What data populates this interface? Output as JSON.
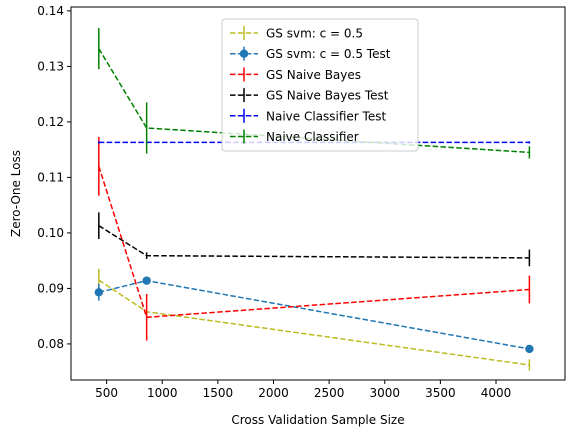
{
  "chart_data": {
    "type": "line",
    "xlabel": "Cross Validation Sample Size",
    "ylabel": "Zero-One Loss",
    "xlim": [
      180,
      4620
    ],
    "ylim": [
      0.0735,
      0.1407
    ],
    "xticks": [
      500,
      1000,
      1500,
      2000,
      2500,
      3000,
      3500,
      4000
    ],
    "yticks": [
      0.08,
      0.09,
      0.1,
      0.11,
      0.12,
      0.13,
      0.14
    ],
    "xtick_labels": [
      "500",
      "1000",
      "1500",
      "2000",
      "2500",
      "3000",
      "3500",
      "4000"
    ],
    "ytick_labels": [
      "0.08",
      "0.09",
      "0.10",
      "0.11",
      "0.12",
      "0.13",
      "0.14"
    ],
    "grid": false,
    "legend_position": "top-center",
    "series": [
      {
        "name": "GS svm: c = 0.5",
        "color": "#bcbd22",
        "marker": "none",
        "x": [
          430,
          860,
          4300
        ],
        "y": [
          0.0915,
          0.0858,
          0.0762
        ],
        "yerr": [
          0.002,
          0.0004,
          0.001
        ]
      },
      {
        "name": "GS svm: c = 0.5 Test",
        "color": "#1f77b4",
        "marker": "circle",
        "x": [
          430,
          860,
          4300
        ],
        "y": [
          0.0893,
          0.0914,
          0.0791
        ],
        "yerr": [
          0.0015,
          0.0,
          0.0
        ]
      },
      {
        "name": "GS Naive Bayes",
        "color": "#ff0000",
        "marker": "none",
        "x": [
          430,
          860,
          4300
        ],
        "y": [
          0.112,
          0.0848,
          0.0898
        ],
        "yerr": [
          0.0053,
          0.0042,
          0.0025
        ]
      },
      {
        "name": "GS Naive Bayes Test",
        "color": "#000000",
        "marker": "none",
        "x": [
          430,
          860,
          4300
        ],
        "y": [
          0.1013,
          0.0959,
          0.0955
        ],
        "yerr": [
          0.0024,
          0.0006,
          0.0015
        ]
      },
      {
        "name": "Naive Classifier Test",
        "color": "#0000ff",
        "marker": "none",
        "x": [
          430,
          860,
          4300
        ],
        "y": [
          0.1163,
          0.1163,
          0.1163
        ],
        "yerr": [
          0.0002,
          0.0002,
          0.0002
        ]
      },
      {
        "name": "Naive Classifier",
        "color": "#008000",
        "marker": "none",
        "x": [
          430,
          860,
          4300
        ],
        "y": [
          0.1332,
          0.1189,
          0.1145
        ],
        "yerr": [
          0.0037,
          0.0046,
          0.0011
        ]
      }
    ]
  }
}
